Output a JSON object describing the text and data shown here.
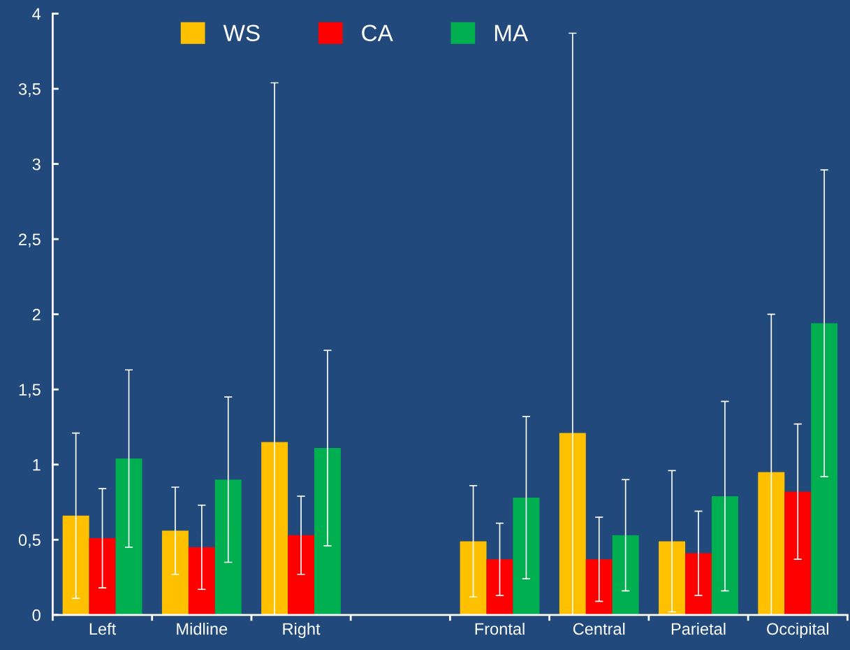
{
  "chart_data": {
    "type": "bar",
    "categories": [
      "Left",
      "Midline",
      "Right",
      null,
      "Frontal",
      "Central",
      "Parietal",
      "Occipital"
    ],
    "series": [
      {
        "name": "WS",
        "color": "#ffc000",
        "values": [
          0.66,
          0.56,
          1.15,
          null,
          0.49,
          1.21,
          0.49,
          0.95
        ],
        "errors": [
          0.55,
          0.29,
          [
            0,
            3.54
          ],
          null,
          0.37,
          [
            0,
            3.87
          ],
          0.47,
          [
            0,
            2.0
          ]
        ]
      },
      {
        "name": "CA",
        "color": "#ff0000",
        "values": [
          0.51,
          0.45,
          0.53,
          null,
          0.37,
          0.37,
          0.41,
          0.82
        ],
        "errors": [
          0.33,
          0.28,
          0.26,
          null,
          0.24,
          0.28,
          0.28,
          0.45
        ]
      },
      {
        "name": "MA",
        "color": "#00b050",
        "values": [
          1.04,
          0.9,
          1.11,
          null,
          0.78,
          0.53,
          0.79,
          1.94
        ],
        "errors": [
          0.59,
          0.55,
          0.65,
          null,
          0.54,
          0.37,
          0.63,
          1.02
        ]
      }
    ],
    "ylim": [
      0,
      4
    ],
    "yticks": [
      0,
      {
        "value": 0.5,
        "label": "0,5"
      },
      1,
      {
        "value": 1.5,
        "label": "1,5"
      },
      2,
      {
        "value": 2.5,
        "label": "2,5"
      },
      3,
      {
        "value": 3.5,
        "label": "3,5"
      },
      4
    ],
    "grid": false,
    "legend": "top"
  }
}
